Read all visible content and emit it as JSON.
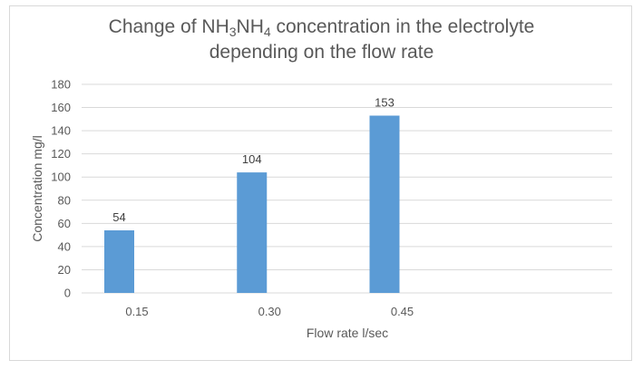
{
  "chart_data": {
    "type": "bar",
    "title": {
      "line1_prefix": "Change of NH",
      "sub1": "3",
      "mid": "NH",
      "sub2": "4",
      "line1_suffix": " concentration in the electrolyte",
      "line2": "depending on the flow rate"
    },
    "xlabel": "Flow rate l/sec",
    "ylabel": "Concentration mg/l",
    "categories": [
      "0.15",
      "0.30",
      "0.45"
    ],
    "values": [
      54,
      104,
      153
    ],
    "ylim": [
      0,
      180
    ],
    "yticks": [
      0,
      20,
      40,
      60,
      80,
      100,
      120,
      140,
      160,
      180
    ],
    "grid": true,
    "legend": "none",
    "bar_color": "#5b9bd5",
    "grid_color": "#d9d9d9"
  }
}
